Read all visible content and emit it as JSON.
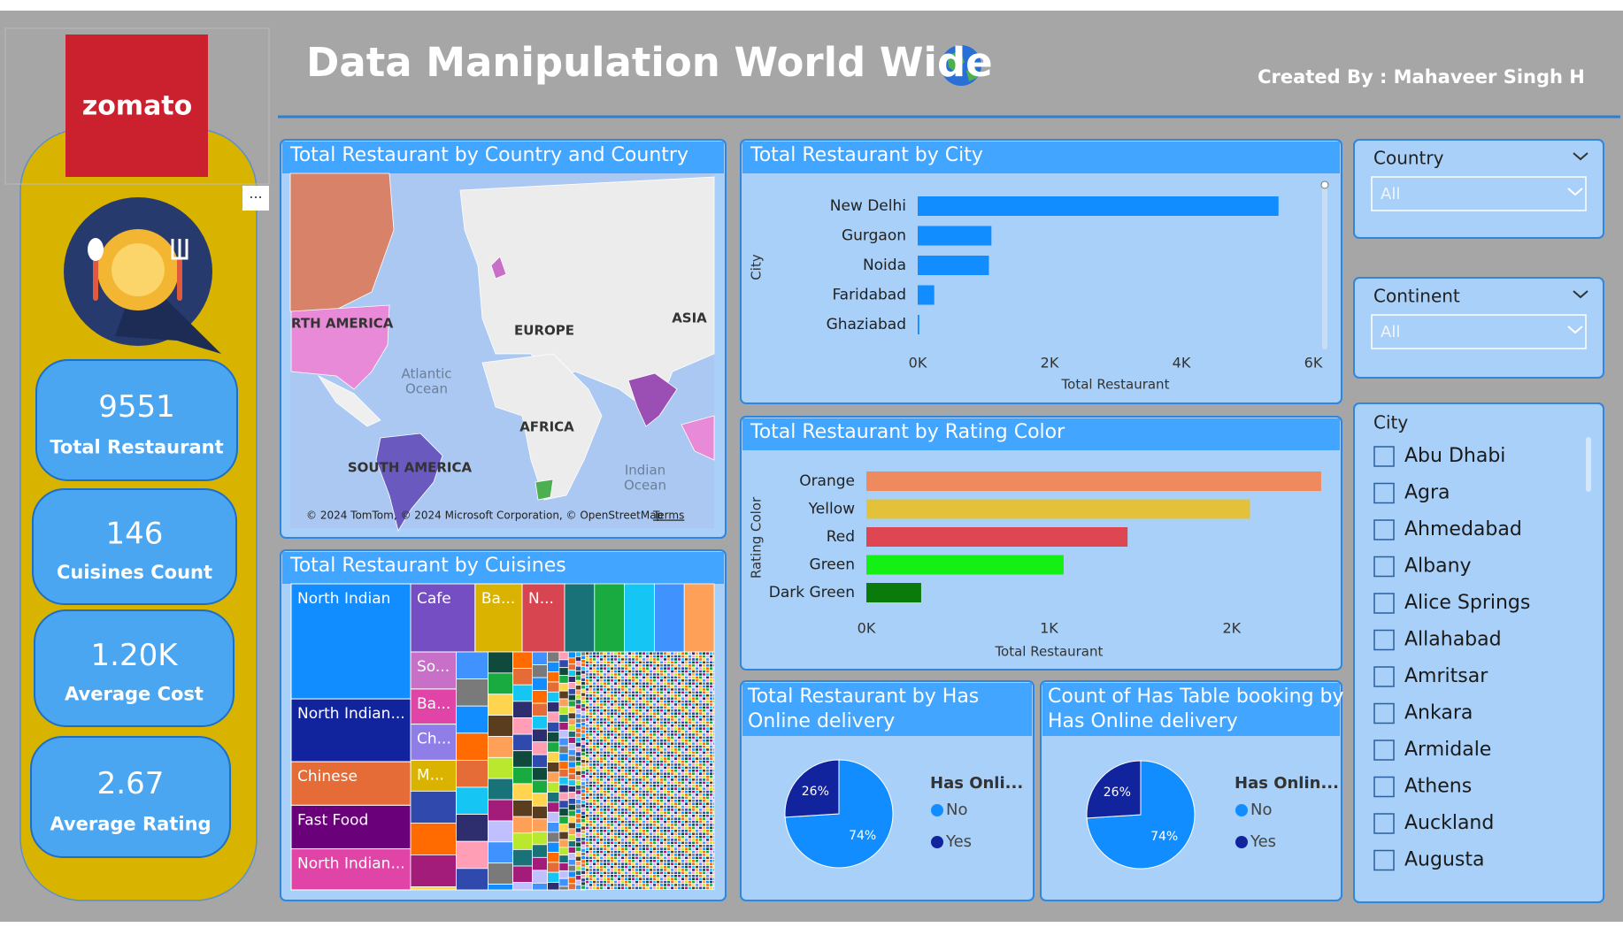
{
  "header": {
    "logo": "zomato",
    "title": "Data Manipulation World Wide",
    "credit": "Created By : Mahaveer Singh H",
    "more_options": "···"
  },
  "kpis": [
    {
      "value": "9551",
      "label": "Total Restaurant"
    },
    {
      "value": "146",
      "label": "Cuisines Count"
    },
    {
      "value": "1.20K",
      "label": "Average Cost"
    },
    {
      "value": "2.67",
      "label": "Average Rating"
    }
  ],
  "map": {
    "title": "Total Restaurant by Country and Country",
    "labels": [
      "RTH AMERICA",
      "EUROPE",
      "ASIA",
      "Atlantic",
      "Ocean",
      "AFRICA",
      "SOUTH AMERICA",
      "Indian",
      "Ocean"
    ],
    "attribution": "© 2024 TomTom, © 2024 Microsoft Corporation, © OpenStreetMap",
    "terms": "Terms"
  },
  "slicers": {
    "country": {
      "title": "Country",
      "value": "All"
    },
    "continent": {
      "title": "Continent",
      "value": "All"
    },
    "city": {
      "title": "City",
      "items": [
        "Abu Dhabi",
        "Agra",
        "Ahmedabad",
        "Albany",
        "Alice Springs",
        "Allahabad",
        "Amritsar",
        "Ankara",
        "Armidale",
        "Athens",
        "Auckland",
        "Augusta"
      ]
    }
  },
  "chart_data": [
    {
      "type": "hbar",
      "title": "Total Restaurant by City",
      "x_label": "Total Restaurant",
      "y_label": "City",
      "categories": [
        "New Delhi",
        "Gurgaon",
        "Noida",
        "Faridabad",
        "Ghaziabad"
      ],
      "values": [
        5473,
        1118,
        1080,
        251,
        25
      ],
      "color": "#118dff",
      "xlim": [
        0,
        6000
      ],
      "xticks": [
        {
          "value": 0,
          "label": "0K"
        },
        {
          "value": 2000,
          "label": "2K"
        },
        {
          "value": 4000,
          "label": "4K"
        },
        {
          "value": 6000,
          "label": "6K"
        }
      ]
    },
    {
      "type": "hbar",
      "title": "Total Restaurant by Rating Color",
      "x_label": "Total Restaurant",
      "y_label": "Rating Color",
      "categories": [
        "Orange",
        "Yellow",
        "Red",
        "Green",
        "Dark Green"
      ],
      "values": [
        2490,
        2100,
        1430,
        1080,
        300
      ],
      "colors": [
        "#ee8a5e",
        "#e3c23a",
        "#de4652",
        "#14ef14",
        "#0a7a0a"
      ],
      "xlim": [
        0,
        2500
      ],
      "xticks": [
        {
          "value": 0,
          "label": "0K"
        },
        {
          "value": 1000,
          "label": "1K"
        },
        {
          "value": 2000,
          "label": "2K"
        }
      ]
    },
    {
      "type": "treemap",
      "title": "Total Restaurant by Cuisines",
      "categories": [
        "North Indian",
        "North Indian...",
        "Chinese",
        "Fast Food",
        "North Indian...",
        "Cafe",
        "Ba...",
        "N...",
        "So...",
        "Ba...",
        "Ch...",
        "M..."
      ],
      "values": [
        936,
        511,
        354,
        354,
        334,
        299,
        218,
        197,
        115,
        109,
        112,
        96
      ],
      "colors": [
        "#118dff",
        "#12239e",
        "#e66c37",
        "#6b007b",
        "#e044a7",
        "#744ec2",
        "#d9b300",
        "#d64550",
        "#c86fc8",
        "#e044a7",
        "#8f7ee8",
        "#d9b300"
      ]
    },
    {
      "type": "pie",
      "title": [
        "Total Restaurant by Has",
        "Online delivery"
      ],
      "legend_title": "Has Onli...",
      "categories": [
        "No",
        "Yes"
      ],
      "values": [
        74,
        26
      ],
      "value_labels": [
        "74%",
        "26%"
      ],
      "colors": [
        "#118dff",
        "#12239e"
      ]
    },
    {
      "type": "pie",
      "title": [
        "Count of Has Table booking by",
        "Has Online delivery"
      ],
      "legend_title": "Has Onlin...",
      "categories": [
        "No",
        "Yes"
      ],
      "values": [
        74,
        26
      ],
      "value_labels": [
        "74%",
        "26%"
      ],
      "colors": [
        "#118dff",
        "#12239e"
      ]
    }
  ]
}
